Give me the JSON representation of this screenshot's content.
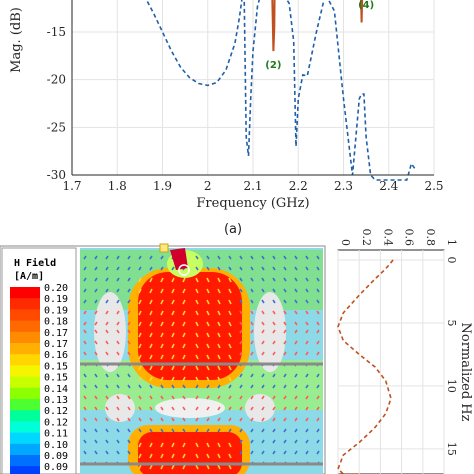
{
  "chart_data": [
    {
      "type": "line",
      "ylabel": "Mag. (dB)",
      "xlabel": "Frequency (GHz)",
      "xlim": [
        1.7,
        2.5
      ],
      "ylim": [
        -30,
        -10
      ],
      "x_ticks": [
        "1.7",
        "1.8",
        "1.9",
        "2",
        "2.1",
        "2.2",
        "2.3",
        "2.4",
        "2.5"
      ],
      "y_ticks": [
        "-15",
        "-20",
        "-25",
        "-30"
      ],
      "grid": true,
      "annotations": [
        {
          "label": "(2)",
          "x": 2.145,
          "y": -18.8
        },
        {
          "label": "(4)",
          "x": 2.35,
          "y": -12.5
        }
      ],
      "series": [
        {
          "style": "dashed",
          "color": "#1f5fa8",
          "x": [
            1.84,
            1.86,
            1.88,
            1.9,
            1.92,
            1.94,
            1.96,
            1.98,
            2.0,
            2.02,
            2.04,
            2.06,
            2.07,
            2.08,
            2.085,
            2.09,
            2.095,
            2.1,
            2.11,
            2.12,
            2.13,
            2.14,
            2.16,
            2.18,
            2.19,
            2.195,
            2.2,
            2.21,
            2.22,
            2.24,
            2.26,
            2.28,
            2.3,
            2.32,
            2.335,
            2.34,
            2.345,
            2.35,
            2.36,
            2.37,
            2.38,
            2.4,
            2.42,
            2.44,
            2.45,
            2.46
          ],
          "y": [
            -10,
            -11.2,
            -13,
            -15,
            -17,
            -18.7,
            -19.8,
            -20.4,
            -20.6,
            -20.3,
            -19,
            -16.2,
            -13.5,
            -10,
            -26,
            -28,
            -22,
            -17,
            -12.3,
            -10.5,
            -10,
            -10,
            -10.5,
            -12,
            -16,
            -27,
            -22,
            -19.5,
            -19.6,
            -15,
            -11,
            -12.8,
            -22,
            -30,
            -22,
            -21.5,
            -21.5,
            -26,
            -30,
            -31,
            -31,
            -31,
            -31,
            -31,
            -28.8,
            -29.5
          ]
        },
        {
          "style": "solid",
          "color": "#c0501f",
          "x": [
            2.142,
            2.145,
            2.147,
            2.148,
            2.338,
            2.34,
            2.342
          ],
          "y": [
            -10,
            -17,
            -14.5,
            -10,
            -10,
            -14,
            -10
          ]
        }
      ]
    },
    {
      "type": "line",
      "ylabel": "Normalized Hz",
      "xlim": [
        0,
        1
      ],
      "ylim": [
        0,
        15
      ],
      "x_ticks": [
        "0",
        "0.2",
        "0.4",
        "0.6",
        "0.8",
        "1"
      ],
      "y_ticks": [
        "0",
        "5",
        "10",
        "15"
      ],
      "series": [
        {
          "style": "dashed",
          "color": "#c0501f",
          "x": [
            0.52,
            0.45,
            0.35,
            0.2,
            0.05,
            0.0,
            0.05,
            0.2,
            0.35,
            0.45,
            0.5,
            0.45,
            0.35,
            0.2,
            0.05,
            0.0,
            0.05,
            0.2
          ],
          "y": [
            0,
            0.7,
            1.5,
            2.8,
            4.2,
            5.3,
            6.4,
            7.5,
            8.5,
            9.6,
            11.0,
            12.2,
            13.3,
            14.5,
            15.5,
            16.6,
            17.5,
            18.3
          ]
        }
      ]
    }
  ],
  "caption": "(a)",
  "legend": {
    "title": "H Field",
    "unit": "[A/m]",
    "values": [
      "0.20",
      "0.19",
      "0.19",
      "0.18",
      "0.17",
      "0.17",
      "0.16",
      "0.15",
      "0.15",
      "0.14",
      "0.13",
      "0.12",
      "0.12",
      "0.11",
      "0.10",
      "0.09",
      "0.09"
    ],
    "colors": [
      "#ff0000",
      "#ff2a00",
      "#ff4a00",
      "#ff6a00",
      "#ff8c00",
      "#ffb000",
      "#ffd600",
      "#f5f500",
      "#c8ff00",
      "#8cff00",
      "#4cff30",
      "#00ff9a",
      "#00ffd8",
      "#00d8ff",
      "#00a8ff",
      "#0070ff",
      "#0040ff"
    ]
  }
}
